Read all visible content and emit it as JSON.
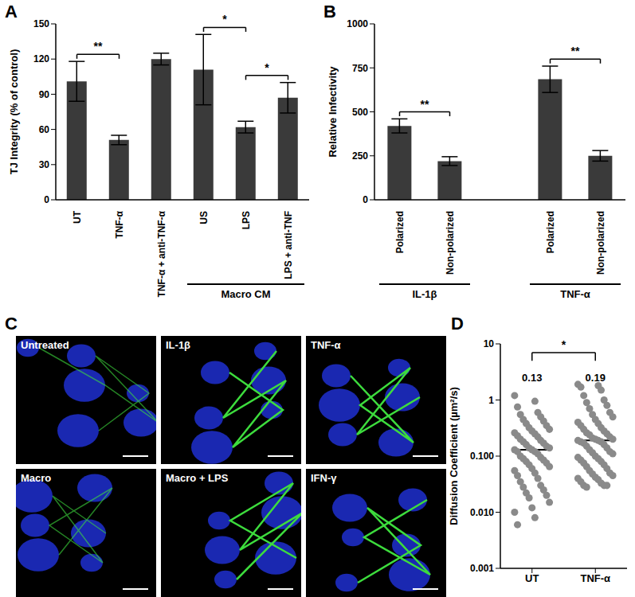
{
  "chart_data": [
    {
      "type": "bar",
      "title": "A",
      "y_label": "TJ Integrity (% of control)",
      "color": "#3a3a3a",
      "categories": [
        "UT",
        "TNF-α",
        "TNF-α + anti-TNF-α",
        "US",
        "LPS",
        "LPS + anti-TNF"
      ],
      "values": [
        101,
        51,
        120,
        111,
        62,
        87
      ],
      "errors": [
        17,
        4,
        5,
        30,
        5,
        13
      ],
      "ylim": [
        0,
        150
      ],
      "yticks": [
        0,
        30,
        60,
        90,
        120,
        150
      ],
      "annotations": [
        {
          "text": "Macro CM",
          "under": [
            "US",
            "LPS",
            "LPS + anti-TNF"
          ]
        },
        {
          "text": "**",
          "between": [
            "UT",
            "TNF-α"
          ]
        },
        {
          "text": "*",
          "between": [
            "US",
            "LPS"
          ]
        },
        {
          "text": "*",
          "between": [
            "LPS",
            "LPS + anti-TNF"
          ]
        }
      ]
    },
    {
      "type": "bar",
      "title": "B",
      "y_label": "Relative Infectivity",
      "color": "#3a3a3a",
      "ylim": [
        0,
        1000
      ],
      "yticks": [
        0,
        250,
        500,
        750,
        1000
      ],
      "groups": [
        {
          "name": "IL-1β",
          "categories": [
            "Polarized",
            "Non-polarized"
          ],
          "values": [
            420,
            220
          ],
          "errors": [
            40,
            25
          ],
          "annotation": "**"
        },
        {
          "name": "TNF-α",
          "categories": [
            "Polarized",
            "Non-polarized"
          ],
          "values": [
            685,
            250
          ],
          "errors": [
            75,
            30
          ],
          "annotation": "**"
        }
      ]
    },
    {
      "type": "images",
      "title": "C",
      "panels": [
        "Untreated",
        "IL-1β",
        "TNF-α",
        "Macro",
        "Macro + LPS",
        "IFN-γ"
      ]
    },
    {
      "type": "scatter",
      "title": "D",
      "y_label": "Diffusion Coefficient (µm²/s)",
      "color": "#8a8a8a",
      "log": "y",
      "ylim": [
        0.001,
        10
      ],
      "yticks": [
        0.001,
        {
          "value": 0.01,
          "label": "0.010"
        },
        {
          "value": 0.1,
          "label": "0.100"
        },
        1,
        10
      ],
      "series": [
        {
          "name": "UT",
          "values": [
            1.2,
            0.95,
            0.75,
            0.6,
            0.55,
            0.5,
            0.45,
            0.42,
            0.38,
            0.35,
            0.32,
            0.3,
            0.28,
            0.26,
            0.25,
            0.23,
            0.22,
            0.2,
            0.19,
            0.18,
            0.17,
            0.16,
            0.15,
            0.14,
            0.14,
            0.13,
            0.13,
            0.12,
            0.12,
            0.11,
            0.1,
            0.095,
            0.09,
            0.085,
            0.08,
            0.075,
            0.07,
            0.065,
            0.06,
            0.055,
            0.05,
            0.045,
            0.04,
            0.035,
            0.03,
            0.028,
            0.025,
            0.022,
            0.02,
            0.018,
            0.015,
            0.012,
            0.01,
            0.008,
            0.006
          ]
        },
        {
          "name": "TNF-α",
          "values": [
            1.9,
            1.8,
            1.7,
            1.5,
            1.2,
            1.0,
            0.9,
            0.8,
            0.7,
            0.6,
            0.55,
            0.5,
            0.45,
            0.4,
            0.38,
            0.35,
            0.32,
            0.3,
            0.28,
            0.26,
            0.25,
            0.24,
            0.22,
            0.21,
            0.2,
            0.2,
            0.19,
            0.19,
            0.18,
            0.18,
            0.17,
            0.16,
            0.15,
            0.14,
            0.13,
            0.12,
            0.115,
            0.11,
            0.1,
            0.095,
            0.09,
            0.085,
            0.08,
            0.075,
            0.07,
            0.065,
            0.06,
            0.055,
            0.05,
            0.048,
            0.045,
            0.042,
            0.04,
            0.038,
            0.035,
            0.033,
            0.03,
            0.03,
            0.028,
            0.03
          ]
        }
      ],
      "medians": [
        0.13,
        0.19
      ],
      "annotations": [
        {
          "text": "*",
          "between": [
            "UT",
            "TNF-α"
          ]
        }
      ]
    }
  ]
}
